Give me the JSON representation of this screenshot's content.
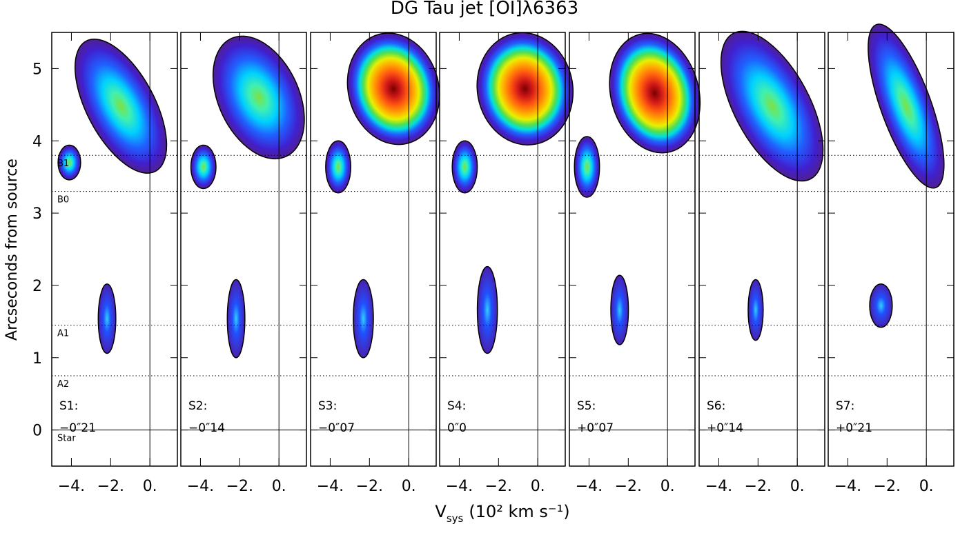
{
  "chart_data": {
    "type": "contour",
    "title": "DG Tau jet [OI]λ6363",
    "xlabel": {
      "main": "V",
      "sub": "sys",
      "rest": "(10² km s⁻¹)"
    },
    "ylabel": "Arcseconds from source",
    "xlim": [
      -5,
      1.4
    ],
    "xticks": [
      {
        "value": -4,
        "label": "−4."
      },
      {
        "value": -2,
        "label": "−2."
      },
      {
        "value": 0,
        "label": "0."
      }
    ],
    "ylim": [
      5.5,
      -0.5
    ],
    "yticks": [
      0,
      1,
      2,
      3,
      4,
      5
    ],
    "vline": 0,
    "reference_lines": [
      {
        "label": "Star",
        "value": 0,
        "style": "solid"
      },
      {
        "label": "A2",
        "value": 0.75,
        "style": "dotted"
      },
      {
        "label": "A1",
        "value": 1.45,
        "style": "dotted"
      },
      {
        "label": "B0",
        "value": 3.3,
        "style": "dotted"
      },
      {
        "label": "B1",
        "value": 3.8,
        "style": "dotted"
      }
    ],
    "panels": [
      {
        "label": "S1:",
        "offset": "−0″21"
      },
      {
        "label": "S2:",
        "offset": "−0″14"
      },
      {
        "label": "S3:",
        "offset": "−0″07"
      },
      {
        "label": "S4:",
        "offset": "0″0"
      },
      {
        "label": "S5:",
        "offset": "+0″07"
      },
      {
        "label": "S6:",
        "offset": "+0″14"
      },
      {
        "label": "S7:",
        "offset": "+0″21"
      }
    ]
  }
}
